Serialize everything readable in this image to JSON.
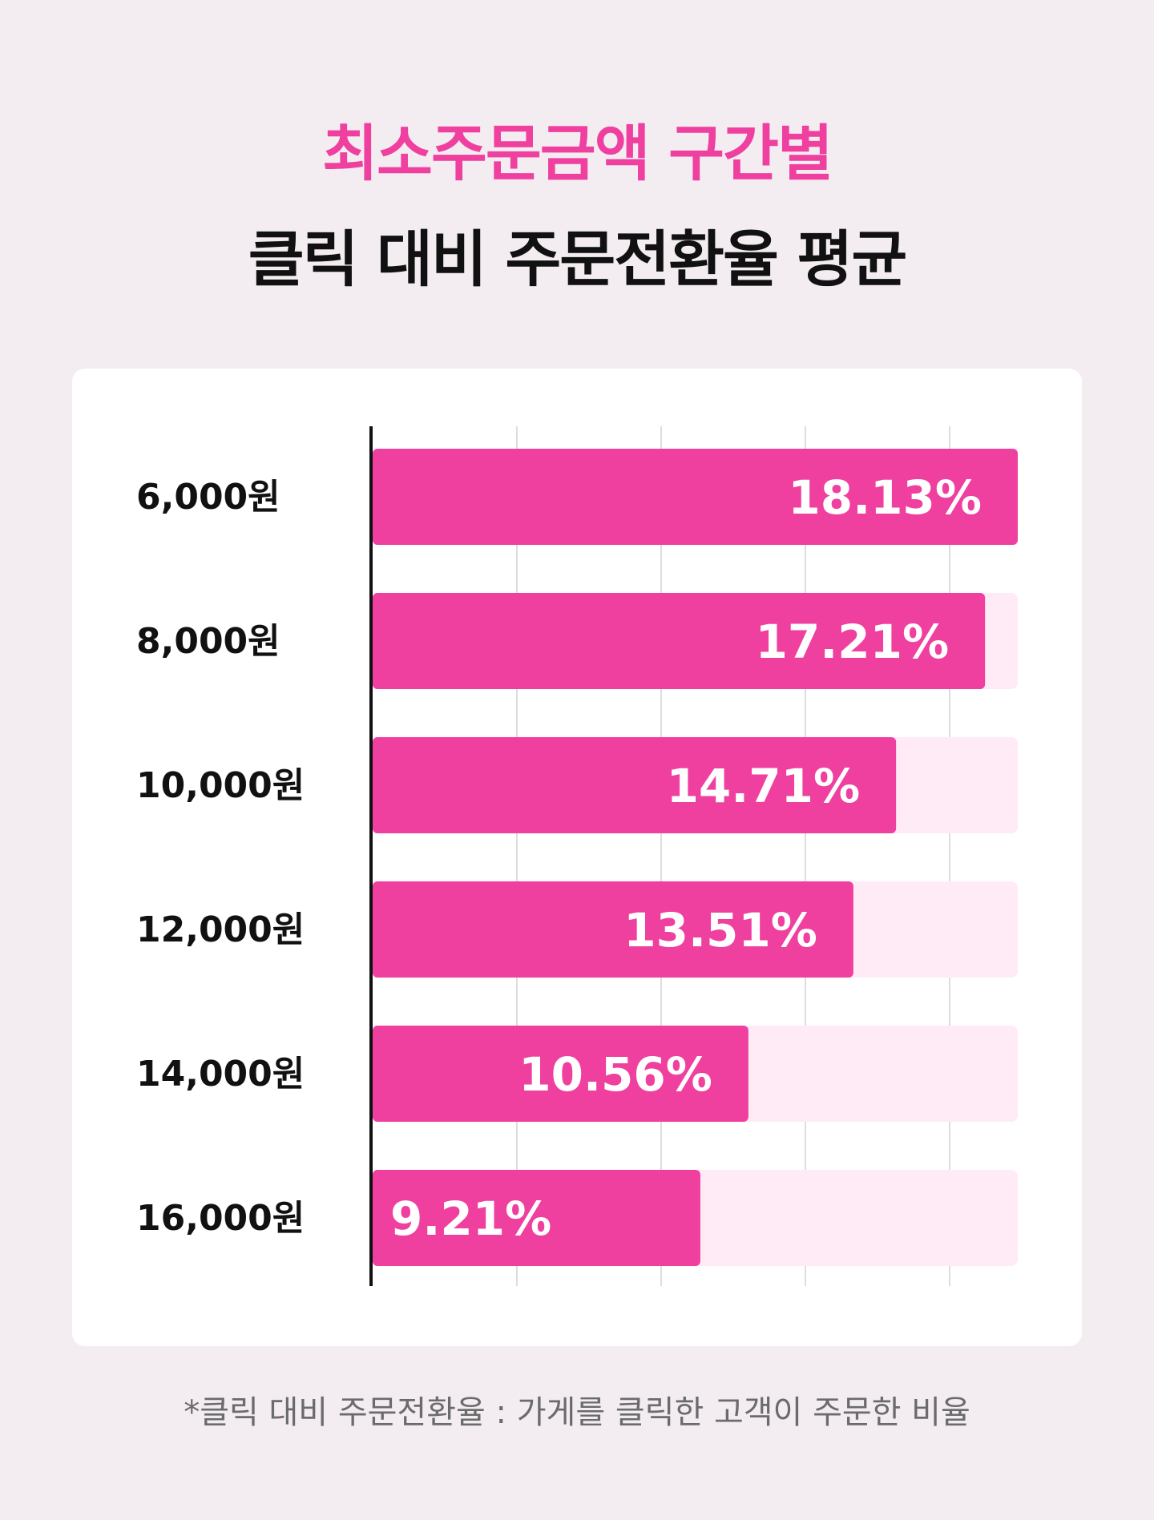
{
  "title_line1": "최소주문금액 구간별",
  "title_line2": "클릭 대비 주문전환율 평균",
  "footnote": "*클릭 대비 주문전환율 : 가게를 클릭한 고객이 주문한 비율",
  "colors": {
    "accent": "#ef3f9f",
    "bar_track": "#ffebf6",
    "background": "#f3edf1",
    "card": "#ffffff",
    "grid": "#dddddd",
    "axis": "#111111"
  },
  "chart_data": {
    "type": "bar",
    "orientation": "horizontal",
    "categories": [
      "6,000원",
      "8,000원",
      "10,000원",
      "12,000원",
      "14,000원",
      "16,000원"
    ],
    "values": [
      18.13,
      17.21,
      14.71,
      13.51,
      10.56,
      9.21
    ],
    "value_labels": [
      "18.13%",
      "17.21%",
      "14.71%",
      "13.51%",
      "10.56%",
      "9.21%"
    ],
    "xlim": [
      0,
      18.13
    ],
    "grid": true,
    "xlabel": "",
    "ylabel": ""
  }
}
